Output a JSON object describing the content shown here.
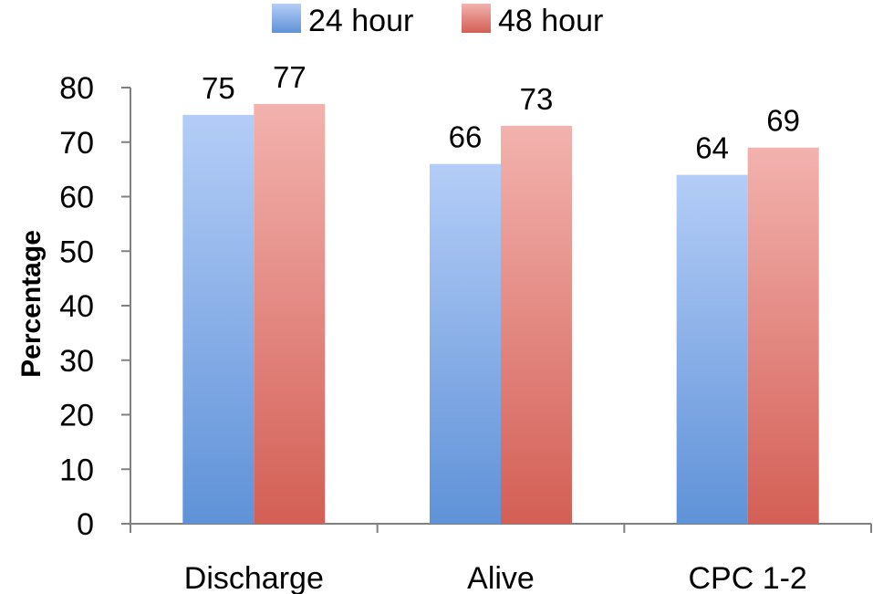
{
  "chart_data": {
    "type": "bar",
    "title": "",
    "xlabel": "",
    "ylabel": "Percentage",
    "categories": [
      "Discharge",
      "Alive",
      "CPC 1-2"
    ],
    "series": [
      {
        "name": "24 hour",
        "values": [
          75,
          66,
          64
        ],
        "color": "#6f9fe0"
      },
      {
        "name": "48 hour",
        "values": [
          77,
          73,
          69
        ],
        "color": "#e2807a"
      }
    ],
    "ylim": [
      0,
      80
    ],
    "yticks": [
      "0",
      "10",
      "20",
      "30",
      "40",
      "50",
      "60",
      "70",
      "80"
    ],
    "grid": false,
    "legend_position": "top",
    "data_labels": true
  }
}
